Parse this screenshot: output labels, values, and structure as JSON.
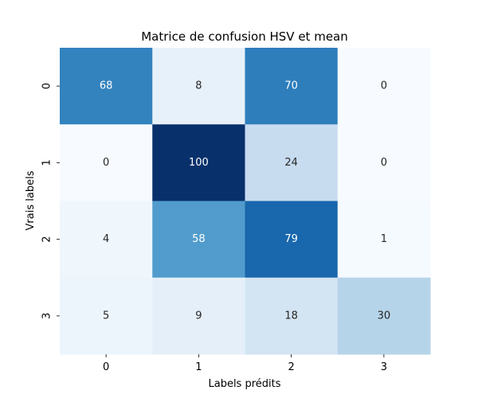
{
  "chart_data": {
    "type": "heatmap",
    "title": "Matrice de confusion HSV et mean",
    "xlabel": "Labels prédits",
    "ylabel": "Vrais labels",
    "x_categories": [
      "0",
      "1",
      "2",
      "3"
    ],
    "y_categories": [
      "0",
      "1",
      "2",
      "3"
    ],
    "values": [
      [
        68,
        8,
        70,
        0
      ],
      [
        0,
        100,
        24,
        0
      ],
      [
        4,
        58,
        79,
        1
      ],
      [
        5,
        9,
        18,
        30
      ]
    ],
    "colormap": "Blues",
    "vmin": 0,
    "vmax": 100,
    "colorbar": false,
    "grid": false
  }
}
